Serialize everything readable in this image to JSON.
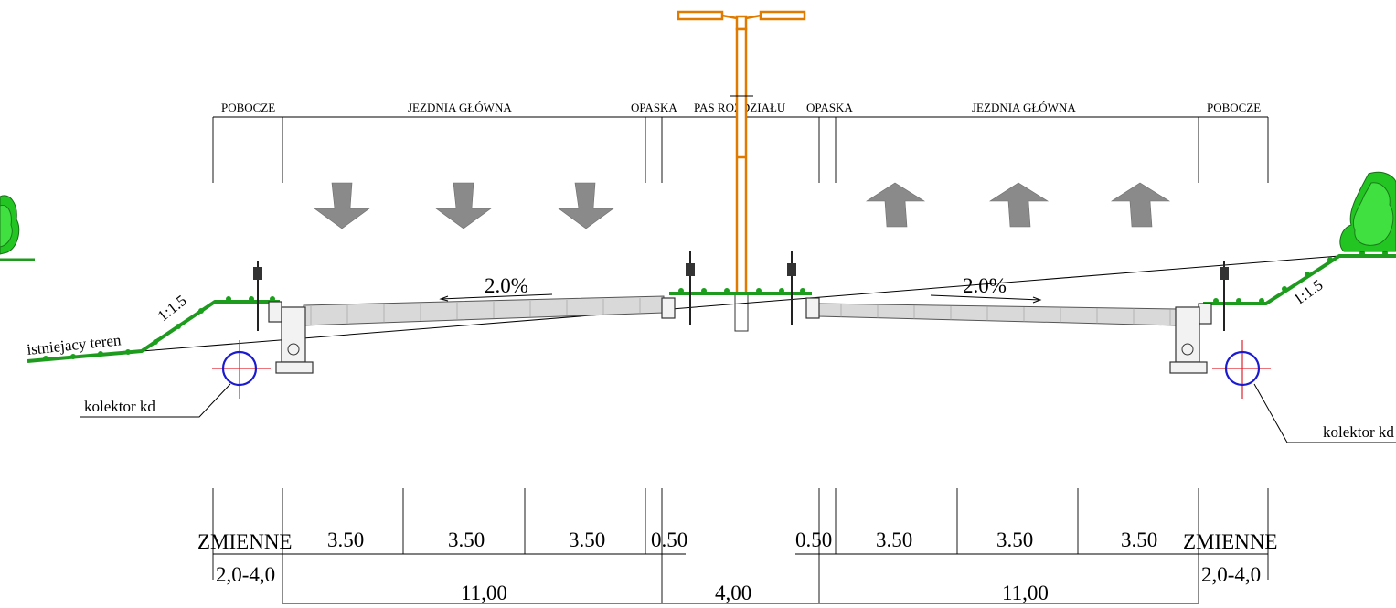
{
  "labels": {
    "pobocze_left": "POBOCZE",
    "jezdnia_left": "JEZDNIA GŁÓWNA",
    "opaska_left": "OPASKA",
    "pas_rozdzialu": "PAS ROZDZIAŁU",
    "opaska_right": "OPASKA",
    "jezdnia_right": "JEZDNIA GŁÓWNA",
    "pobocze_right": "POBOCZE",
    "slope_left_pct": "2.0%",
    "slope_right_pct": "2.0%",
    "embankment_left": "1:1.5",
    "embankment_right": "1:1.5",
    "terrain": "istniejacy teren",
    "collector_left": "kolektor kd",
    "collector_right": "kolektor kd"
  },
  "dimensions": {
    "zmienne_left": "ZMIENNE",
    "zmienne_left_range": "2,0-4,0",
    "lane_left_1": "3.50",
    "lane_left_2": "3.50",
    "lane_left_3": "3.50",
    "opaska_left": "0.50",
    "opaska_right": "0.50",
    "lane_right_1": "3.50",
    "lane_right_2": "3.50",
    "lane_right_3": "3.50",
    "zmienne_right": "ZMIENNE",
    "zmienne_right_range": "2,0-4,0",
    "carriageway_left_total": "11,00",
    "median_total": "4,00",
    "carriageway_right_total": "11,00"
  },
  "colors": {
    "grass": "#1e9b1e",
    "lamp": "#e07b00",
    "arrows": "#8a8a8a",
    "pipe": "#1a1ad0",
    "pipe_cross": "#e0202a"
  }
}
